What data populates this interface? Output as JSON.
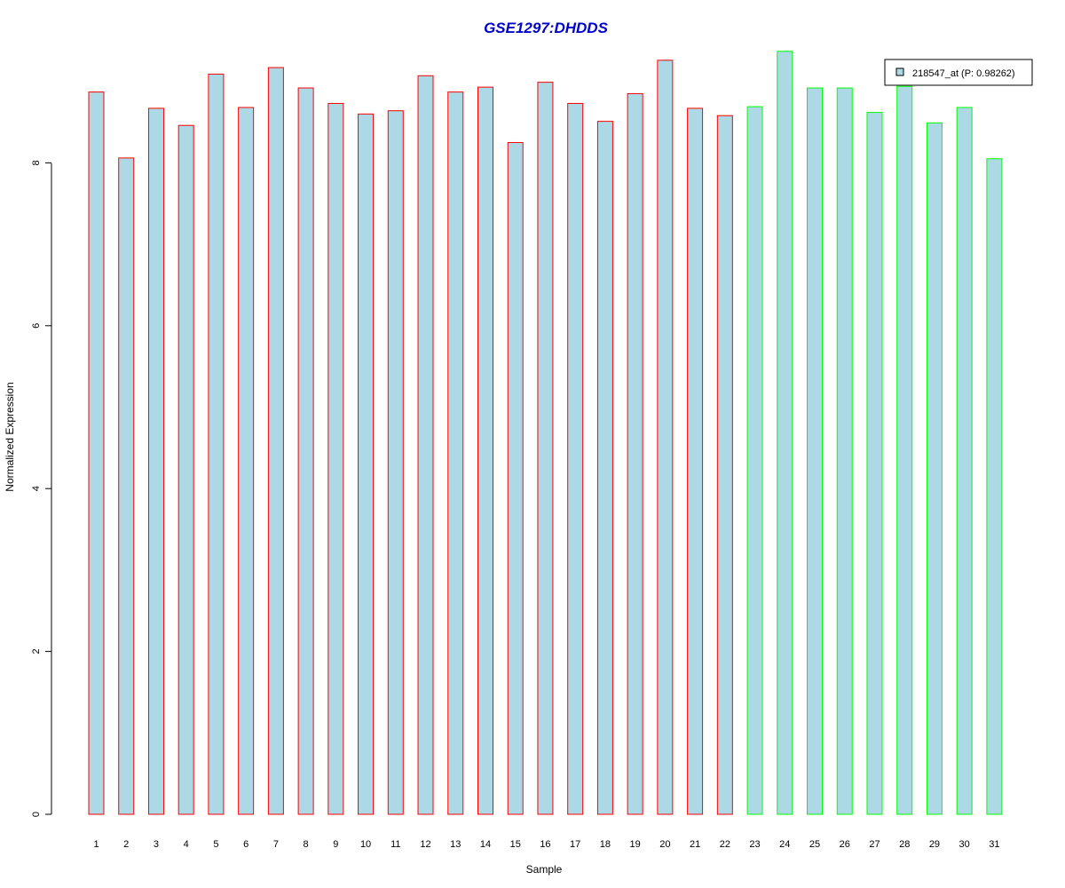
{
  "chart_data": {
    "type": "bar",
    "title": "GSE1297:DHDDS",
    "xlabel": "Sample",
    "ylabel": "Normalized Expression",
    "ylim": [
      0,
      9.5
    ],
    "yticks": [
      "0",
      "2",
      "4",
      "6",
      "8"
    ],
    "categories": [
      "1",
      "2",
      "3",
      "4",
      "5",
      "6",
      "7",
      "8",
      "9",
      "10",
      "11",
      "12",
      "13",
      "14",
      "15",
      "16",
      "17",
      "18",
      "19",
      "20",
      "21",
      "22",
      "23",
      "24",
      "25",
      "26",
      "27",
      "28",
      "29",
      "30",
      "31"
    ],
    "values": [
      8.87,
      8.06,
      8.67,
      8.46,
      9.09,
      8.68,
      9.17,
      8.92,
      8.73,
      8.6,
      8.64,
      9.07,
      8.87,
      8.93,
      8.25,
      8.99,
      8.73,
      8.51,
      8.85,
      9.26,
      8.67,
      8.58,
      8.69,
      9.37,
      8.92,
      8.92,
      8.62,
      8.94,
      8.49,
      8.68,
      8.05
    ],
    "bar_fill": "#add8e6",
    "group_border_colors": [
      "#ff0000",
      "#ff0000",
      "#ff0000",
      "#ff0000",
      "#ff0000",
      "#ff0000",
      "#ff0000",
      "#ff0000",
      "#ff0000",
      "#ff0000",
      "#ff0000",
      "#ff0000",
      "#ff0000",
      "#ff0000",
      "#ff0000",
      "#ff0000",
      "#ff0000",
      "#ff0000",
      "#ff0000",
      "#ff0000",
      "#ff0000",
      "#ff0000",
      "#00ff00",
      "#00ff00",
      "#00ff00",
      "#00ff00",
      "#00ff00",
      "#00ff00",
      "#00ff00",
      "#00ff00",
      "#00ff00"
    ],
    "legend": {
      "label": "218547_at (P: 0.98262)",
      "placement": "top-right"
    },
    "title_color": "#0000cc",
    "grid": false
  }
}
